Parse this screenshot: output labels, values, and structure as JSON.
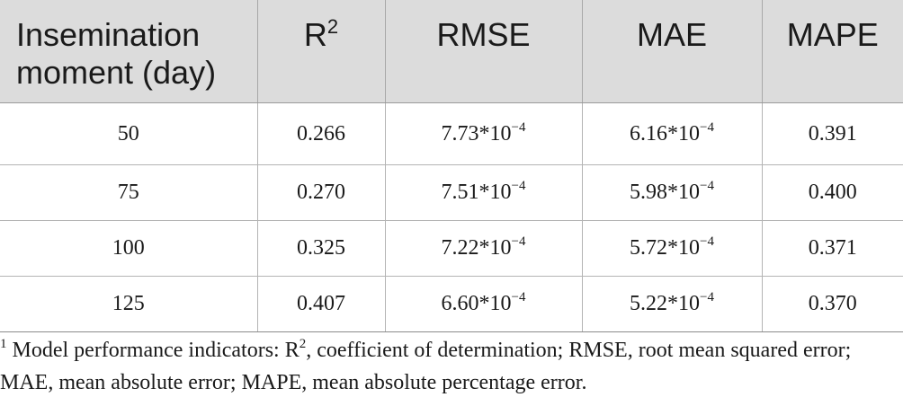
{
  "table": {
    "headers": {
      "moment": "Insemination moment (day)",
      "r2_base": "R",
      "r2_sup": "2",
      "rmse": "RMSE",
      "mae": "MAE",
      "mape": "MAPE"
    },
    "rows": [
      {
        "moment": "50",
        "r2": "0.266",
        "rmse_mantissa": "7.73*10",
        "rmse_exp": "−4",
        "mae_mantissa": "6.16*10",
        "mae_exp": "−4",
        "mape": "0.391"
      },
      {
        "moment": "75",
        "r2": "0.270",
        "rmse_mantissa": "7.51*10",
        "rmse_exp": "−4",
        "mae_mantissa": "5.98*10",
        "mae_exp": "−4",
        "mape": "0.400"
      },
      {
        "moment": "100",
        "r2": "0.325",
        "rmse_mantissa": "7.22*10",
        "rmse_exp": "−4",
        "mae_mantissa": "5.72*10",
        "mae_exp": "−4",
        "mape": "0.371"
      },
      {
        "moment": "125",
        "r2": "0.407",
        "rmse_mantissa": "6.60*10",
        "rmse_exp": "−4",
        "mae_mantissa": "5.22*10",
        "mae_exp": "−4",
        "mape": "0.370"
      }
    ]
  },
  "footnote": {
    "marker": "1",
    "text_before_sup": " Model performance indicators: R",
    "sup": "2",
    "text_after_sup": ", coefficient of determination; RMSE, root mean squared error; MAE, mean absolute error; MAPE, mean absolute percentage error."
  }
}
